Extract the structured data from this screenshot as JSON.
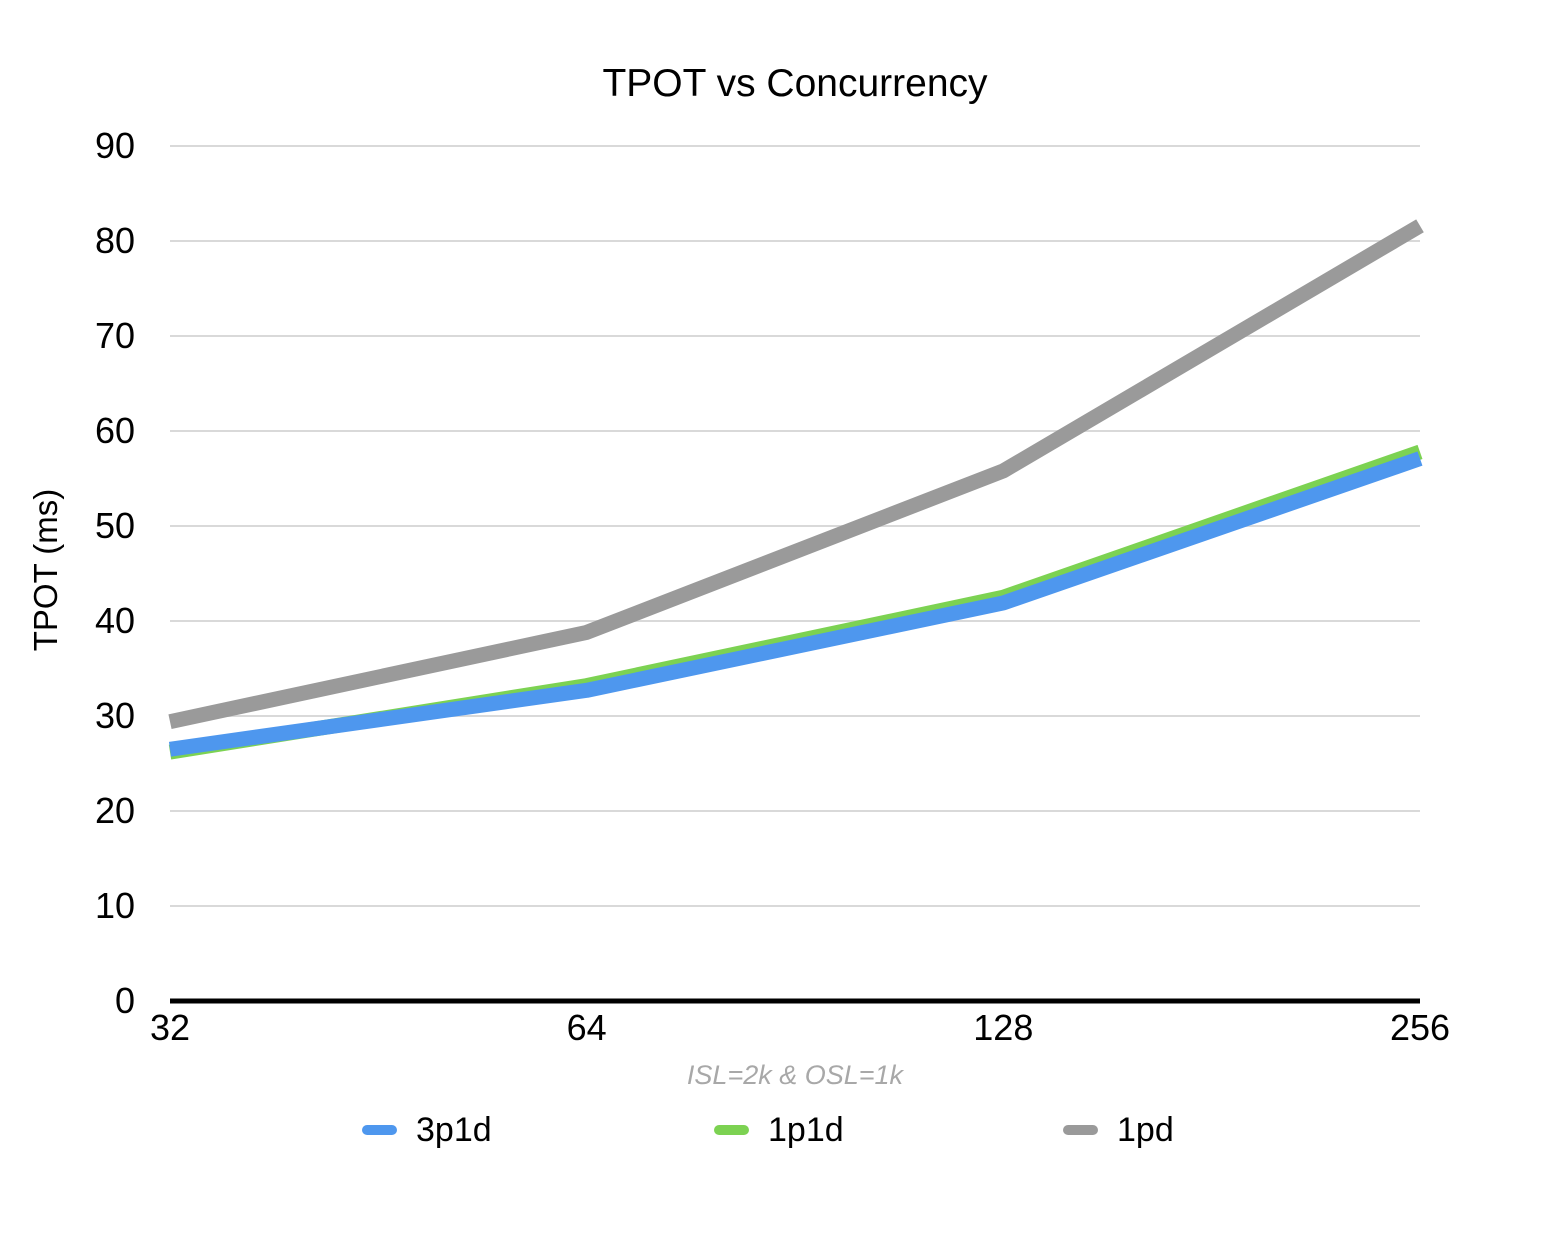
{
  "title": "TPOT vs Concurrency",
  "colors": {
    "background": "#ffffff",
    "gridline": "#d9d9d9",
    "axis": "#000000",
    "tick_text": "#000000",
    "footnote_text": "#a8a8a8",
    "series_3p1d": "#4e97ee",
    "series_1p1d": "#7cd252",
    "series_1pd": "#9a9a9a"
  },
  "chart_data": {
    "type": "line",
    "title": "TPOT vs Concurrency",
    "xlabel": "ISL=2k & OSL=1k",
    "ylabel": "TPOT (ms)",
    "categories": [
      "32",
      "64",
      "128",
      "256"
    ],
    "yticks": [
      0,
      10,
      20,
      30,
      40,
      50,
      60,
      70,
      80,
      90
    ],
    "ylim": [
      0,
      90
    ],
    "grid": true,
    "legend_position": "bottom",
    "series": [
      {
        "name": "3p1d",
        "color": "#4e97ee",
        "values": [
          26.5,
          32.7,
          41.9,
          57.1
        ]
      },
      {
        "name": "1p1d",
        "color": "#7cd252",
        "values": [
          26.2,
          33.2,
          42.5,
          57.8
        ]
      },
      {
        "name": "1pd",
        "color": "#9a9a9a",
        "values": [
          29.4,
          38.8,
          55.8,
          81.6
        ]
      }
    ],
    "draw_order": [
      "1p1d",
      "3p1d",
      "1pd"
    ]
  }
}
